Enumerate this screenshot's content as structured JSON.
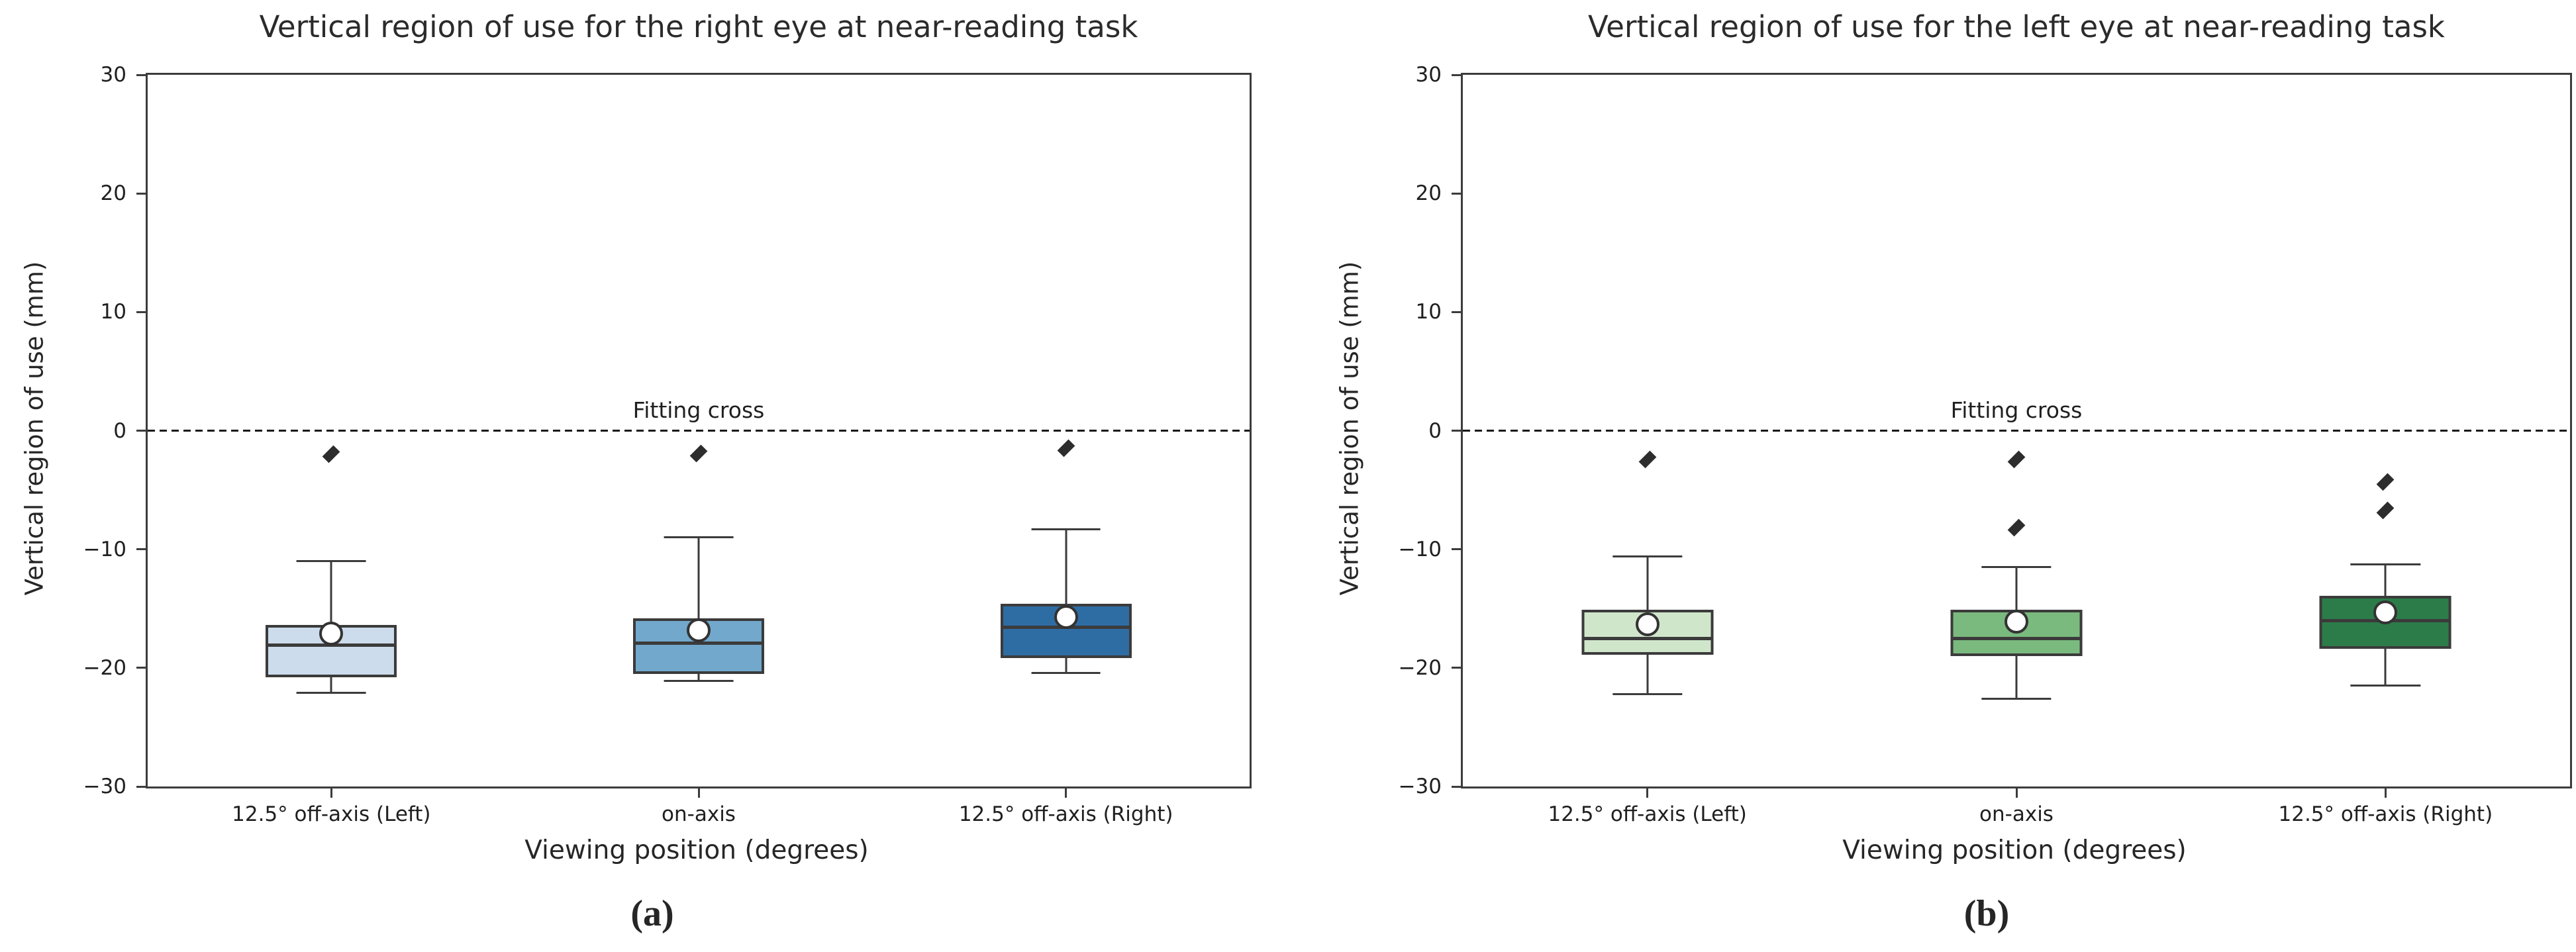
{
  "figure": {
    "background": "#ffffff",
    "text_color": "#262626",
    "spine_color": "#3c3c3c",
    "box_edge_color": "#3b3b3b",
    "outlier_color": "#2d2d2d",
    "mean_marker": "white-circle",
    "outlier_marker": "thin-diamond"
  },
  "chart_data": [
    {
      "type": "box",
      "panel_label": "(a)",
      "title": "Vertical region of use for the right eye at near-reading task",
      "xlabel": "Viewing position (degrees)",
      "ylabel": "Vertical region of use (mm)",
      "ylim": [
        -30,
        30
      ],
      "yticks": [
        30,
        20,
        10,
        0,
        -10,
        -20,
        -30
      ],
      "grid": false,
      "reference_line": {
        "y": 0,
        "label": "Fitting cross",
        "style": "dashed",
        "color": "#1a1a1a"
      },
      "categories": [
        "12.5° off-axis (Left)",
        "on-axis",
        "12.5° off-axis (Right)"
      ],
      "palette": [
        "#ccdcec",
        "#72a8cc",
        "#2e6da4"
      ],
      "series": [
        {
          "category": "12.5° off-axis (Left)",
          "fill": "#ccdcec",
          "whisker_low": -22.1,
          "q1": -20.8,
          "median": -18.1,
          "mean": -17.1,
          "q3": -16.4,
          "whisker_high": -11.0,
          "outliers": [
            -2.0
          ]
        },
        {
          "category": "on-axis",
          "fill": "#72a8cc",
          "whisker_low": -21.1,
          "q1": -20.5,
          "median": -17.9,
          "mean": -16.8,
          "q3": -15.8,
          "whisker_high": -9.0,
          "outliers": [
            -1.9
          ]
        },
        {
          "category": "12.5° off-axis (Right)",
          "fill": "#2e6da4",
          "whisker_low": -20.4,
          "q1": -19.2,
          "median": -16.6,
          "mean": -15.7,
          "q3": -14.6,
          "whisker_high": -8.3,
          "outliers": [
            -1.5
          ]
        }
      ]
    },
    {
      "type": "box",
      "panel_label": "(b)",
      "title": "Vertical region of use for the left eye at near-reading task",
      "xlabel": "Viewing position (degrees)",
      "ylabel": "Vertical region of use (mm)",
      "ylim": [
        -30,
        30
      ],
      "yticks": [
        30,
        20,
        10,
        0,
        -10,
        -20,
        -30
      ],
      "grid": false,
      "reference_line": {
        "y": 0,
        "label": "Fitting cross",
        "style": "dashed",
        "color": "#1a1a1a"
      },
      "categories": [
        "12.5° off-axis (Left)",
        "on-axis",
        "12.5° off-axis (Right)"
      ],
      "palette": [
        "#d0e6cb",
        "#7aba7e",
        "#2c7c49"
      ],
      "series": [
        {
          "category": "12.5° off-axis (Left)",
          "fill": "#d0e6cb",
          "whisker_low": -22.2,
          "q1": -18.9,
          "median": -17.5,
          "mean": -16.3,
          "q3": -15.1,
          "whisker_high": -10.6,
          "outliers": [
            -2.4
          ]
        },
        {
          "category": "on-axis",
          "fill": "#7aba7e",
          "whisker_low": -22.6,
          "q1": -19.0,
          "median": -17.5,
          "mean": -16.1,
          "q3": -15.1,
          "whisker_high": -11.5,
          "outliers": [
            -2.4,
            -8.2
          ]
        },
        {
          "category": "12.5° off-axis (Right)",
          "fill": "#2c7c49",
          "whisker_low": -21.5,
          "q1": -18.4,
          "median": -16.0,
          "mean": -15.3,
          "q3": -13.9,
          "whisker_high": -11.3,
          "outliers": [
            -4.3,
            -6.7
          ]
        }
      ]
    }
  ]
}
